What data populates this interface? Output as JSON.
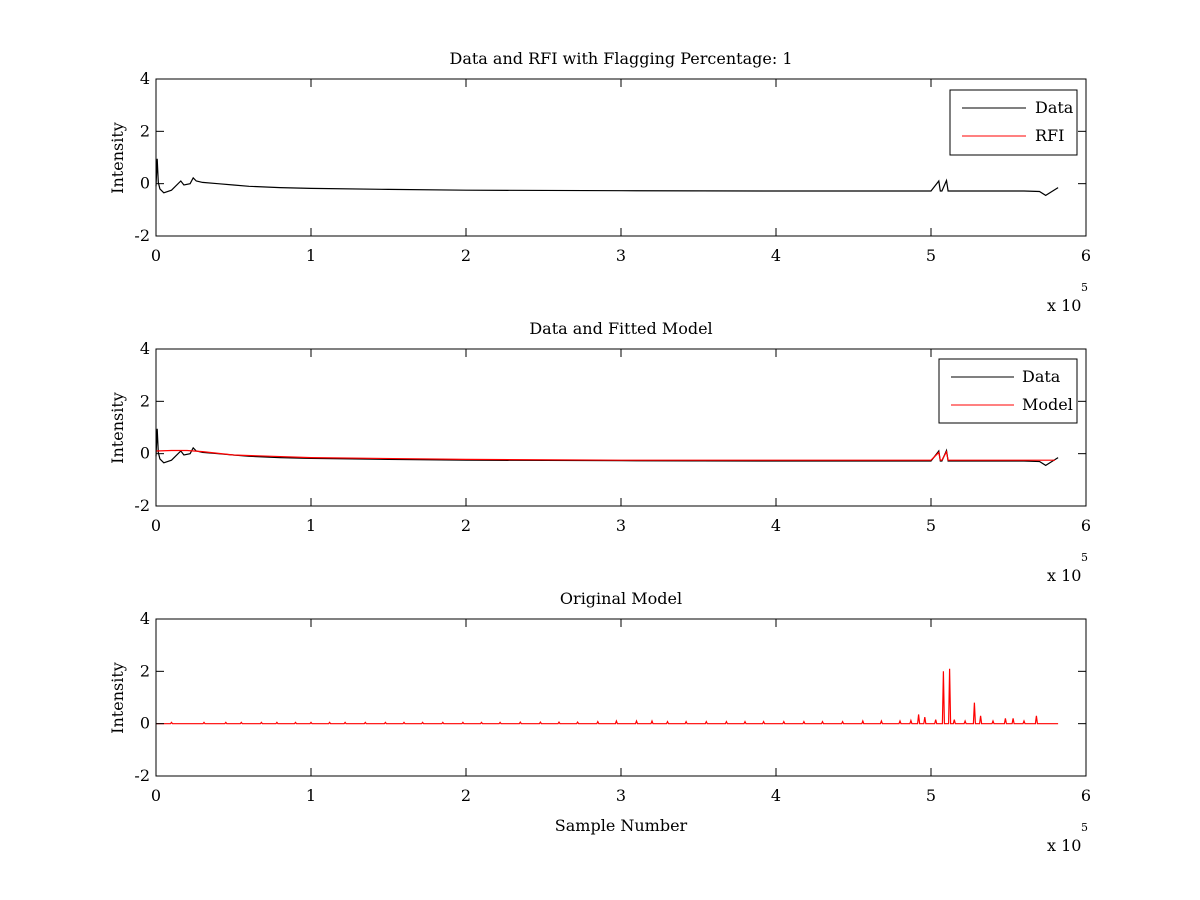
{
  "figure": {
    "background": "#ffffff",
    "axes_color": "#000000",
    "colors": {
      "data": "#000000",
      "rfi": "#ff0000",
      "model": "#ff0000",
      "original_model": "#ff0000"
    }
  },
  "chart_data": [
    {
      "type": "line",
      "title": "Data and RFI with Flagging Percentage: 1",
      "xlabel": "",
      "ylabel": "Intensity",
      "xlim": [
        0,
        600000
      ],
      "ylim": [
        -2,
        4
      ],
      "x_ticks": [
        0,
        100000,
        200000,
        300000,
        400000,
        500000,
        600000
      ],
      "x_tick_labels": [
        "0",
        "1",
        "2",
        "3",
        "4",
        "5",
        "6"
      ],
      "y_ticks": [
        -2,
        0,
        2,
        4
      ],
      "y_tick_labels": [
        "-2",
        "0",
        "2",
        "4"
      ],
      "x_multiplier": {
        "base": "x 10",
        "exponent": "5"
      },
      "grid": false,
      "legend": {
        "position": "top-right",
        "entries": [
          "Data",
          "RFI"
        ]
      },
      "series": [
        {
          "name": "Data",
          "color": "#000000",
          "x": [
            0,
            800,
            1500,
            2500,
            5000,
            10000,
            16000,
            18000,
            22000,
            24000,
            26000,
            30000,
            40000,
            50000,
            60000,
            80000,
            100000,
            150000,
            200000,
            300000,
            400000,
            500000,
            505000,
            506000,
            507000,
            510000,
            511000,
            512000,
            513000,
            560000,
            570000,
            574000,
            578000,
            582000
          ],
          "y": [
            -0.1,
            0.95,
            0.05,
            -0.2,
            -0.35,
            -0.25,
            0.1,
            -0.05,
            0.0,
            0.22,
            0.1,
            0.05,
            0.0,
            -0.05,
            -0.1,
            -0.15,
            -0.18,
            -0.22,
            -0.25,
            -0.27,
            -0.28,
            -0.28,
            0.1,
            -0.28,
            -0.28,
            0.12,
            -0.28,
            -0.28,
            -0.28,
            -0.28,
            -0.3,
            -0.45,
            -0.3,
            -0.15
          ]
        },
        {
          "name": "RFI",
          "color": "#ff0000",
          "x": [],
          "y": []
        }
      ]
    },
    {
      "type": "line",
      "title": "Data and Fitted Model",
      "xlabel": "",
      "ylabel": "Intensity",
      "xlim": [
        0,
        600000
      ],
      "ylim": [
        -2,
        4
      ],
      "x_ticks": [
        0,
        100000,
        200000,
        300000,
        400000,
        500000,
        600000
      ],
      "x_tick_labels": [
        "0",
        "1",
        "2",
        "3",
        "4",
        "5",
        "6"
      ],
      "y_ticks": [
        -2,
        0,
        2,
        4
      ],
      "y_tick_labels": [
        "-2",
        "0",
        "2",
        "4"
      ],
      "x_multiplier": {
        "base": "x 10",
        "exponent": "5"
      },
      "grid": false,
      "legend": {
        "position": "top-right",
        "entries": [
          "Data",
          "Model"
        ]
      },
      "series": [
        {
          "name": "Data",
          "color": "#000000",
          "x": [
            0,
            800,
            1500,
            2500,
            5000,
            10000,
            16000,
            18000,
            22000,
            24000,
            26000,
            30000,
            40000,
            50000,
            60000,
            80000,
            100000,
            150000,
            200000,
            300000,
            400000,
            500000,
            505000,
            506000,
            507000,
            510000,
            511000,
            512000,
            513000,
            560000,
            570000,
            574000,
            578000,
            582000
          ],
          "y": [
            -0.1,
            0.95,
            0.05,
            -0.2,
            -0.35,
            -0.25,
            0.1,
            -0.05,
            0.0,
            0.22,
            0.1,
            0.05,
            0.0,
            -0.05,
            -0.1,
            -0.15,
            -0.18,
            -0.22,
            -0.25,
            -0.27,
            -0.28,
            -0.28,
            0.1,
            -0.28,
            -0.28,
            0.12,
            -0.28,
            -0.28,
            -0.28,
            -0.28,
            -0.3,
            -0.45,
            -0.3,
            -0.15
          ]
        },
        {
          "name": "Model",
          "color": "#ff0000",
          "x": [
            0,
            10000,
            20000,
            30000,
            50000,
            100000,
            200000,
            300000,
            400000,
            500000,
            505000,
            506000,
            507000,
            510000,
            511000,
            512000,
            560000,
            580000
          ],
          "y": [
            0.1,
            0.12,
            0.12,
            0.08,
            -0.05,
            -0.15,
            -0.22,
            -0.25,
            -0.25,
            -0.25,
            0.05,
            -0.25,
            -0.25,
            0.07,
            -0.25,
            -0.25,
            -0.25,
            -0.25
          ]
        }
      ]
    },
    {
      "type": "line",
      "title": "Original Model",
      "xlabel": "Sample Number",
      "ylabel": "Intensity",
      "xlim": [
        0,
        600000
      ],
      "ylim": [
        -2,
        4
      ],
      "x_ticks": [
        0,
        100000,
        200000,
        300000,
        400000,
        500000,
        600000
      ],
      "x_tick_labels": [
        "0",
        "1",
        "2",
        "3",
        "4",
        "5",
        "6"
      ],
      "y_ticks": [
        -2,
        0,
        2,
        4
      ],
      "y_tick_labels": [
        "-2",
        "0",
        "2",
        "4"
      ],
      "x_multiplier": {
        "base": "x 10",
        "exponent": "5"
      },
      "grid": false,
      "legend": null,
      "series": [
        {
          "name": "",
          "color": "#ff0000",
          "baseline": 0,
          "x_range": [
            0,
            582000
          ],
          "spikes": [
            {
              "x": 10000,
              "y": 0.05
            },
            {
              "x": 31000,
              "y": 0.05
            },
            {
              "x": 45000,
              "y": 0.05
            },
            {
              "x": 55000,
              "y": 0.05
            },
            {
              "x": 68000,
              "y": 0.05
            },
            {
              "x": 78000,
              "y": 0.05
            },
            {
              "x": 90000,
              "y": 0.05
            },
            {
              "x": 100000,
              "y": 0.05
            },
            {
              "x": 112000,
              "y": 0.05
            },
            {
              "x": 122000,
              "y": 0.05
            },
            {
              "x": 135000,
              "y": 0.05
            },
            {
              "x": 148000,
              "y": 0.05
            },
            {
              "x": 160000,
              "y": 0.05
            },
            {
              "x": 172000,
              "y": 0.05
            },
            {
              "x": 185000,
              "y": 0.05
            },
            {
              "x": 198000,
              "y": 0.05
            },
            {
              "x": 210000,
              "y": 0.05
            },
            {
              "x": 222000,
              "y": 0.05
            },
            {
              "x": 235000,
              "y": 0.06
            },
            {
              "x": 248000,
              "y": 0.06
            },
            {
              "x": 260000,
              "y": 0.06
            },
            {
              "x": 272000,
              "y": 0.06
            },
            {
              "x": 285000,
              "y": 0.08
            },
            {
              "x": 297000,
              "y": 0.1
            },
            {
              "x": 310000,
              "y": 0.1
            },
            {
              "x": 320000,
              "y": 0.1
            },
            {
              "x": 330000,
              "y": 0.08
            },
            {
              "x": 342000,
              "y": 0.08
            },
            {
              "x": 355000,
              "y": 0.08
            },
            {
              "x": 368000,
              "y": 0.08
            },
            {
              "x": 380000,
              "y": 0.08
            },
            {
              "x": 392000,
              "y": 0.08
            },
            {
              "x": 405000,
              "y": 0.08
            },
            {
              "x": 418000,
              "y": 0.08
            },
            {
              "x": 430000,
              "y": 0.08
            },
            {
              "x": 443000,
              "y": 0.08
            },
            {
              "x": 456000,
              "y": 0.1
            },
            {
              "x": 468000,
              "y": 0.1
            },
            {
              "x": 480000,
              "y": 0.1
            },
            {
              "x": 487000,
              "y": 0.12
            },
            {
              "x": 492000,
              "y": 0.35
            },
            {
              "x": 496000,
              "y": 0.25
            },
            {
              "x": 503000,
              "y": 0.15
            },
            {
              "x": 508000,
              "y": 2.0
            },
            {
              "x": 512000,
              "y": 2.1
            },
            {
              "x": 515000,
              "y": 0.15
            },
            {
              "x": 522000,
              "y": 0.1
            },
            {
              "x": 528000,
              "y": 0.8
            },
            {
              "x": 532000,
              "y": 0.3
            },
            {
              "x": 540000,
              "y": 0.1
            },
            {
              "x": 548000,
              "y": 0.2
            },
            {
              "x": 553000,
              "y": 0.2
            },
            {
              "x": 560000,
              "y": 0.1
            },
            {
              "x": 568000,
              "y": 0.3
            }
          ]
        }
      ]
    }
  ]
}
